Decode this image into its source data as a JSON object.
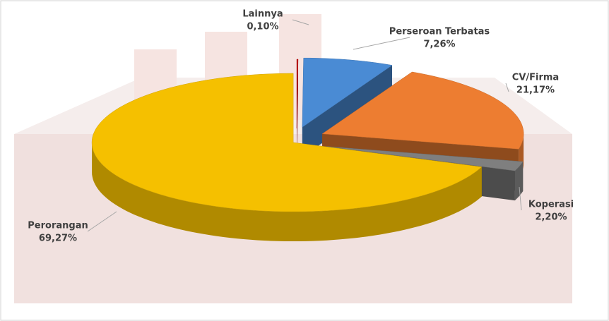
{
  "chart_data": {
    "type": "pie3d",
    "categories": [
      "Lainnya",
      "Perseroan Terbatas",
      "CV/Firma",
      "Koperasi",
      "Perorangan"
    ],
    "values": [
      0.1,
      7.26,
      21.17,
      2.2,
      69.27
    ],
    "value_labels": [
      "0,10%",
      "7,26%",
      "21,17%",
      "2,20%",
      "69,27%"
    ],
    "colors": [
      "#c00000",
      "#4a8bd4",
      "#ed7d31",
      "#7f7f7f",
      "#f5c000"
    ]
  }
}
